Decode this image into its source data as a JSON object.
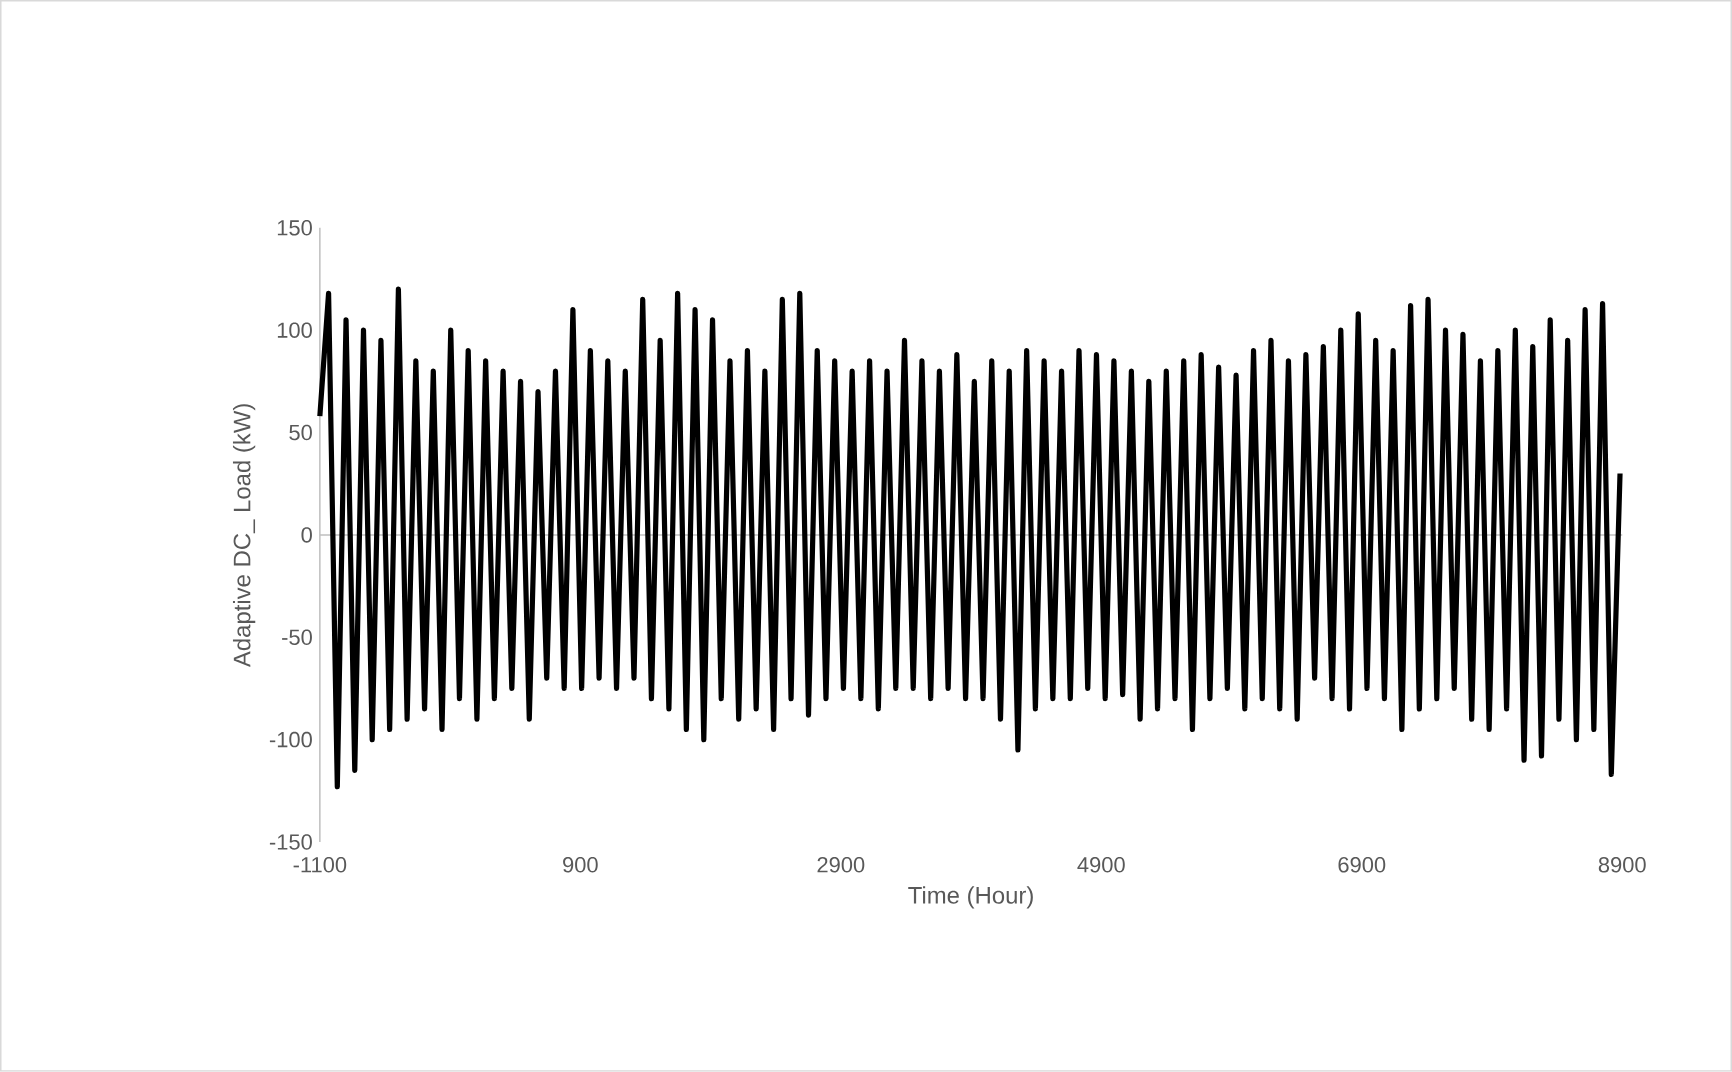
{
  "chart_data": {
    "type": "line",
    "xlabel": "Time (Hour)",
    "ylabel": "Adaptive DC_ Load (kW)",
    "x": [
      -1100,
      -1033,
      -966,
      -899,
      -832,
      -765,
      -698,
      -631,
      -564,
      -497,
      -430,
      -363,
      -296,
      -229,
      -162,
      -95,
      -28,
      39,
      106,
      173,
      240,
      307,
      374,
      441,
      508,
      575,
      642,
      709,
      776,
      843,
      910,
      977,
      1044,
      1111,
      1178,
      1245,
      1312,
      1379,
      1446,
      1513,
      1580,
      1647,
      1714,
      1781,
      1848,
      1915,
      1982,
      2049,
      2116,
      2183,
      2250,
      2317,
      2384,
      2451,
      2518,
      2585,
      2652,
      2719,
      2786,
      2853,
      2920,
      2987,
      3054,
      3121,
      3188,
      3255,
      3322,
      3389,
      3456,
      3523,
      3590,
      3657,
      3724,
      3791,
      3858,
      3925,
      3992,
      4059,
      4126,
      4193,
      4260,
      4327,
      4394,
      4461,
      4528,
      4595,
      4662,
      4729,
      4796,
      4863,
      4930,
      4997,
      5064,
      5131,
      5198,
      5265,
      5332,
      5399,
      5466,
      5533,
      5600,
      5667,
      5734,
      5801,
      5868,
      5935,
      6002,
      6069,
      6136,
      6203,
      6270,
      6337,
      6404,
      6471,
      6538,
      6605,
      6672,
      6739,
      6806,
      6873,
      6940,
      7007,
      7074,
      7141,
      7208,
      7275,
      7342,
      7409,
      7476,
      7543,
      7610,
      7677,
      7744,
      7811,
      7878,
      7945,
      8012,
      8079,
      8146,
      8213,
      8280,
      8347,
      8414,
      8481,
      8548,
      8615,
      8682,
      8749,
      8816,
      8883
    ],
    "series": [
      {
        "color": "#000000",
        "values": [
          58,
          118,
          -123,
          105,
          -115,
          100,
          -100,
          95,
          -95,
          120,
          -90,
          85,
          -85,
          80,
          -95,
          100,
          -80,
          90,
          -90,
          85,
          -80,
          80,
          -75,
          75,
          -90,
          70,
          -70,
          80,
          -75,
          110,
          -75,
          90,
          -70,
          85,
          -75,
          80,
          -70,
          115,
          -80,
          95,
          -85,
          118,
          -95,
          110,
          -100,
          105,
          -80,
          85,
          -90,
          90,
          -85,
          80,
          -95,
          115,
          -80,
          118,
          -88,
          90,
          -80,
          85,
          -75,
          80,
          -80,
          85,
          -85,
          80,
          -75,
          95,
          -75,
          85,
          -80,
          80,
          -75,
          88,
          -80,
          75,
          -80,
          85,
          -90,
          80,
          -105,
          90,
          -85,
          85,
          -80,
          80,
          -80,
          90,
          -75,
          88,
          -80,
          85,
          -78,
          80,
          -90,
          75,
          -85,
          80,
          -80,
          85,
          -95,
          88,
          -80,
          82,
          -75,
          78,
          -85,
          90,
          -80,
          95,
          -85,
          85,
          -90,
          88,
          -70,
          92,
          -80,
          100,
          -85,
          108,
          -75,
          95,
          -80,
          90,
          -95,
          112,
          -85,
          115,
          -80,
          100,
          -75,
          98,
          -90,
          85,
          -95,
          90,
          -85,
          100,
          -110,
          92,
          -108,
          105,
          -90,
          95,
          -100,
          110,
          -95,
          113,
          -117,
          30
        ]
      }
    ],
    "xlim": [
      -1100,
      8900
    ],
    "ylim": [
      -150,
      150
    ],
    "xticks": [
      -1100,
      900,
      2900,
      4900,
      6900,
      8900
    ],
    "yticks": [
      -150,
      -100,
      -50,
      0,
      50,
      100,
      150
    ],
    "marker": "none",
    "line_style": "solid"
  }
}
